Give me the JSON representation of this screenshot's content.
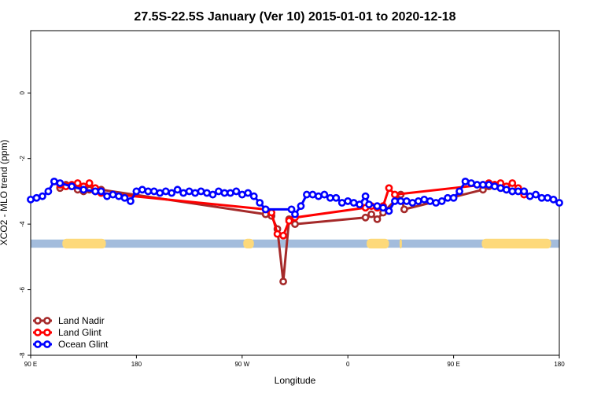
{
  "chart_data": {
    "type": "line",
    "title": "27.5S-22.5S January (Ver 10)   2015-01-01 to 2020-12-18",
    "xlabel": "Longitude",
    "ylabel": "XCO2 - MLO trend (ppm)",
    "x_domain": [
      0,
      450
    ],
    "ylim": [
      -8,
      1.9
    ],
    "x_ticks": [
      {
        "value": 0,
        "label": "90 E"
      },
      {
        "value": 90,
        "label": "180"
      },
      {
        "value": 180,
        "label": "90 W"
      },
      {
        "value": 270,
        "label": "0"
      },
      {
        "value": 360,
        "label": "90 E"
      },
      {
        "value": 450,
        "label": "180"
      }
    ],
    "y_ticks": [
      {
        "value": 0,
        "label": "0"
      },
      {
        "value": -2,
        "label": "-2"
      },
      {
        "value": -4,
        "label": "-4"
      },
      {
        "value": -6,
        "label": "-6"
      },
      {
        "value": -8,
        "label": "-8"
      }
    ],
    "legend_position": "bottom-left",
    "legend": [
      {
        "name": "Land Nadir",
        "color": "#a52a2a"
      },
      {
        "name": "Land Glint",
        "color": "#ff0000"
      },
      {
        "name": "Ocean Glint",
        "color": "#0000ff"
      }
    ],
    "land_ocean_strip": {
      "y_range": [
        -4.72,
        -4.47
      ],
      "ocean_color": "#a3bcdc",
      "land_color": "#fdd97a",
      "land_segments": [
        [
          27,
          64
        ],
        [
          181,
          190
        ],
        [
          286,
          305
        ],
        [
          314,
          316
        ],
        [
          384,
          443
        ]
      ]
    },
    "series": [
      {
        "name": "Land Nadir",
        "color": "#a52a2a",
        "points": [
          [
            25,
            -2.9
          ],
          [
            30,
            -2.8
          ],
          [
            35,
            -2.85
          ],
          [
            40,
            -2.95
          ],
          [
            45,
            -3.0
          ],
          [
            50,
            -2.95
          ],
          [
            55,
            -3.0
          ],
          [
            60,
            -2.95
          ],
          [
            200,
            -3.7
          ],
          [
            205,
            -3.75
          ],
          [
            210,
            -4.15
          ],
          [
            215,
            -5.75
          ],
          [
            220,
            -3.85
          ],
          [
            225,
            -4.0
          ],
          [
            285,
            -3.8
          ],
          [
            290,
            -3.7
          ],
          [
            295,
            -3.85
          ],
          [
            300,
            -3.65
          ],
          [
            315,
            -3.1
          ],
          [
            318,
            -3.55
          ],
          [
            385,
            -2.95
          ],
          [
            390,
            -2.85
          ],
          [
            395,
            -2.8
          ],
          [
            400,
            -2.9
          ],
          [
            405,
            -2.95
          ],
          [
            410,
            -3.0
          ],
          [
            415,
            -2.95
          ],
          [
            420,
            -3.0
          ]
        ]
      },
      {
        "name": "Land Glint",
        "color": "#ff0000",
        "points": [
          [
            25,
            -2.8
          ],
          [
            30,
            -2.85
          ],
          [
            35,
            -2.8
          ],
          [
            40,
            -2.75
          ],
          [
            45,
            -2.85
          ],
          [
            50,
            -2.75
          ],
          [
            55,
            -2.9
          ],
          [
            60,
            -3.05
          ],
          [
            200,
            -3.55
          ],
          [
            205,
            -3.65
          ],
          [
            210,
            -4.3
          ],
          [
            215,
            -4.35
          ],
          [
            220,
            -3.9
          ],
          [
            225,
            -3.8
          ],
          [
            285,
            -3.5
          ],
          [
            290,
            -3.45
          ],
          [
            295,
            -3.5
          ],
          [
            300,
            -3.45
          ],
          [
            305,
            -2.9
          ],
          [
            310,
            -3.1
          ],
          [
            385,
            -2.8
          ],
          [
            390,
            -2.75
          ],
          [
            395,
            -2.8
          ],
          [
            400,
            -2.75
          ],
          [
            405,
            -2.85
          ],
          [
            410,
            -2.75
          ],
          [
            415,
            -2.9
          ],
          [
            420,
            -3.1
          ]
        ]
      },
      {
        "name": "Ocean Glint",
        "color": "#0000ff",
        "points": [
          [
            0,
            -3.25
          ],
          [
            5,
            -3.2
          ],
          [
            10,
            -3.15
          ],
          [
            15,
            -3.0
          ],
          [
            20,
            -2.7
          ],
          [
            25,
            -2.75
          ],
          [
            35,
            -2.85
          ],
          [
            45,
            -2.95
          ],
          [
            55,
            -3.0
          ],
          [
            60,
            -3.0
          ],
          [
            65,
            -3.15
          ],
          [
            70,
            -3.1
          ],
          [
            75,
            -3.15
          ],
          [
            80,
            -3.2
          ],
          [
            85,
            -3.3
          ],
          [
            90,
            -3.0
          ],
          [
            95,
            -2.95
          ],
          [
            100,
            -3.0
          ],
          [
            105,
            -3.0
          ],
          [
            110,
            -3.05
          ],
          [
            115,
            -3.0
          ],
          [
            120,
            -3.05
          ],
          [
            125,
            -2.95
          ],
          [
            130,
            -3.05
          ],
          [
            135,
            -3.0
          ],
          [
            140,
            -3.05
          ],
          [
            145,
            -3.0
          ],
          [
            150,
            -3.05
          ],
          [
            155,
            -3.1
          ],
          [
            160,
            -3.0
          ],
          [
            165,
            -3.05
          ],
          [
            170,
            -3.05
          ],
          [
            175,
            -3.0
          ],
          [
            180,
            -3.1
          ],
          [
            185,
            -3.05
          ],
          [
            190,
            -3.15
          ],
          [
            195,
            -3.35
          ],
          [
            200,
            -3.55
          ],
          [
            222,
            -3.55
          ],
          [
            225,
            -3.7
          ],
          [
            230,
            -3.45
          ],
          [
            235,
            -3.1
          ],
          [
            240,
            -3.1
          ],
          [
            245,
            -3.15
          ],
          [
            250,
            -3.1
          ],
          [
            255,
            -3.2
          ],
          [
            260,
            -3.2
          ],
          [
            265,
            -3.35
          ],
          [
            270,
            -3.3
          ],
          [
            275,
            -3.35
          ],
          [
            280,
            -3.4
          ],
          [
            285,
            -3.15
          ],
          [
            288,
            -3.4
          ],
          [
            295,
            -3.45
          ],
          [
            300,
            -3.5
          ],
          [
            305,
            -3.6
          ],
          [
            310,
            -3.3
          ],
          [
            315,
            -3.3
          ],
          [
            320,
            -3.3
          ],
          [
            325,
            -3.35
          ],
          [
            330,
            -3.3
          ],
          [
            335,
            -3.25
          ],
          [
            340,
            -3.3
          ],
          [
            345,
            -3.35
          ],
          [
            350,
            -3.3
          ],
          [
            355,
            -3.2
          ],
          [
            360,
            -3.2
          ],
          [
            365,
            -3.0
          ],
          [
            370,
            -2.7
          ],
          [
            375,
            -2.75
          ],
          [
            380,
            -2.8
          ],
          [
            385,
            -2.8
          ],
          [
            390,
            -2.8
          ],
          [
            395,
            -2.85
          ],
          [
            400,
            -2.9
          ],
          [
            405,
            -2.95
          ],
          [
            410,
            -3.0
          ],
          [
            415,
            -3.0
          ],
          [
            420,
            -3.0
          ],
          [
            425,
            -3.15
          ],
          [
            430,
            -3.1
          ],
          [
            435,
            -3.2
          ],
          [
            440,
            -3.2
          ],
          [
            445,
            -3.25
          ],
          [
            450,
            -3.35
          ]
        ]
      }
    ]
  }
}
